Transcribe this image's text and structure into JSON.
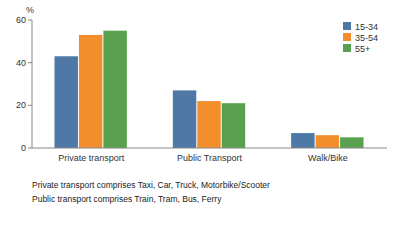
{
  "chart_data": {
    "type": "bar",
    "y_label": "%",
    "categories": [
      "Private transport",
      "Public Transport",
      "Walk/Bike"
    ],
    "series": [
      {
        "name": "15-34",
        "values": [
          43,
          27,
          7
        ]
      },
      {
        "name": "35-54",
        "values": [
          53,
          22,
          6
        ]
      },
      {
        "name": "55+",
        "values": [
          55,
          21,
          5
        ]
      }
    ],
    "ylim": [
      0,
      60
    ],
    "yticks": [
      0,
      20,
      40,
      60
    ],
    "grid": false,
    "legend": "upper right",
    "annotations": [
      "Private transport comprises Taxi, Car, Truck, Motorbike/Scooter",
      "Public transport comprises Train, Tram, Bus, Ferry"
    ]
  }
}
